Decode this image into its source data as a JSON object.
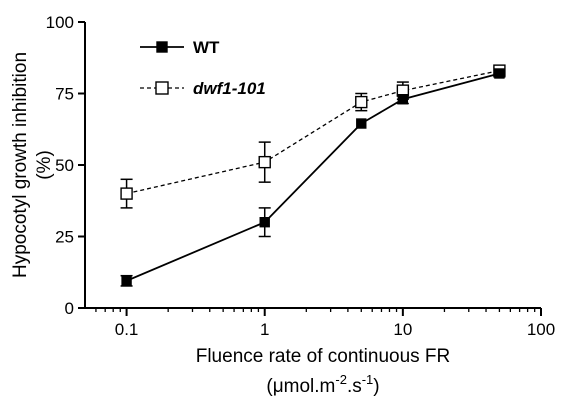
{
  "chart_data": {
    "type": "line",
    "xscale": "log",
    "xlim": [
      0.05,
      100
    ],
    "ylim": [
      0,
      100
    ],
    "x_ticks": [
      0.1,
      1,
      10,
      100
    ],
    "x_tick_labels": [
      "0.1",
      "1",
      "10",
      "100"
    ],
    "y_ticks": [
      0,
      25,
      50,
      75,
      100
    ],
    "y_tick_labels": [
      "0",
      "25",
      "50",
      "75",
      "100"
    ],
    "ylabel_line1": "Hypocotyl growth inhibition",
    "ylabel_line2": "(%)",
    "xlabel_line1": "Fluence rate of continuous FR",
    "xlabel_line2": {
      "pre": "(μmol.m",
      "sup1": "-2",
      "mid": ".s",
      "sup2": "-1",
      "post": ")"
    },
    "legend_position": "top-left",
    "series": [
      {
        "name": "WT",
        "marker": "filled-square",
        "line_style": "solid",
        "color": "#000000",
        "x": [
          0.1,
          1,
          5,
          10,
          50
        ],
        "y": [
          9.5,
          30,
          64.5,
          73,
          82
        ],
        "err": [
          1.8,
          5,
          0,
          1.5,
          1.2
        ]
      },
      {
        "name": "dwf1-101",
        "marker": "open-square",
        "line_style": "dashed",
        "color": "#000000",
        "x": [
          0.1,
          1,
          5,
          10,
          50
        ],
        "y": [
          40,
          51,
          72,
          76,
          83
        ],
        "err": [
          5,
          7,
          3,
          3,
          1
        ]
      }
    ]
  }
}
